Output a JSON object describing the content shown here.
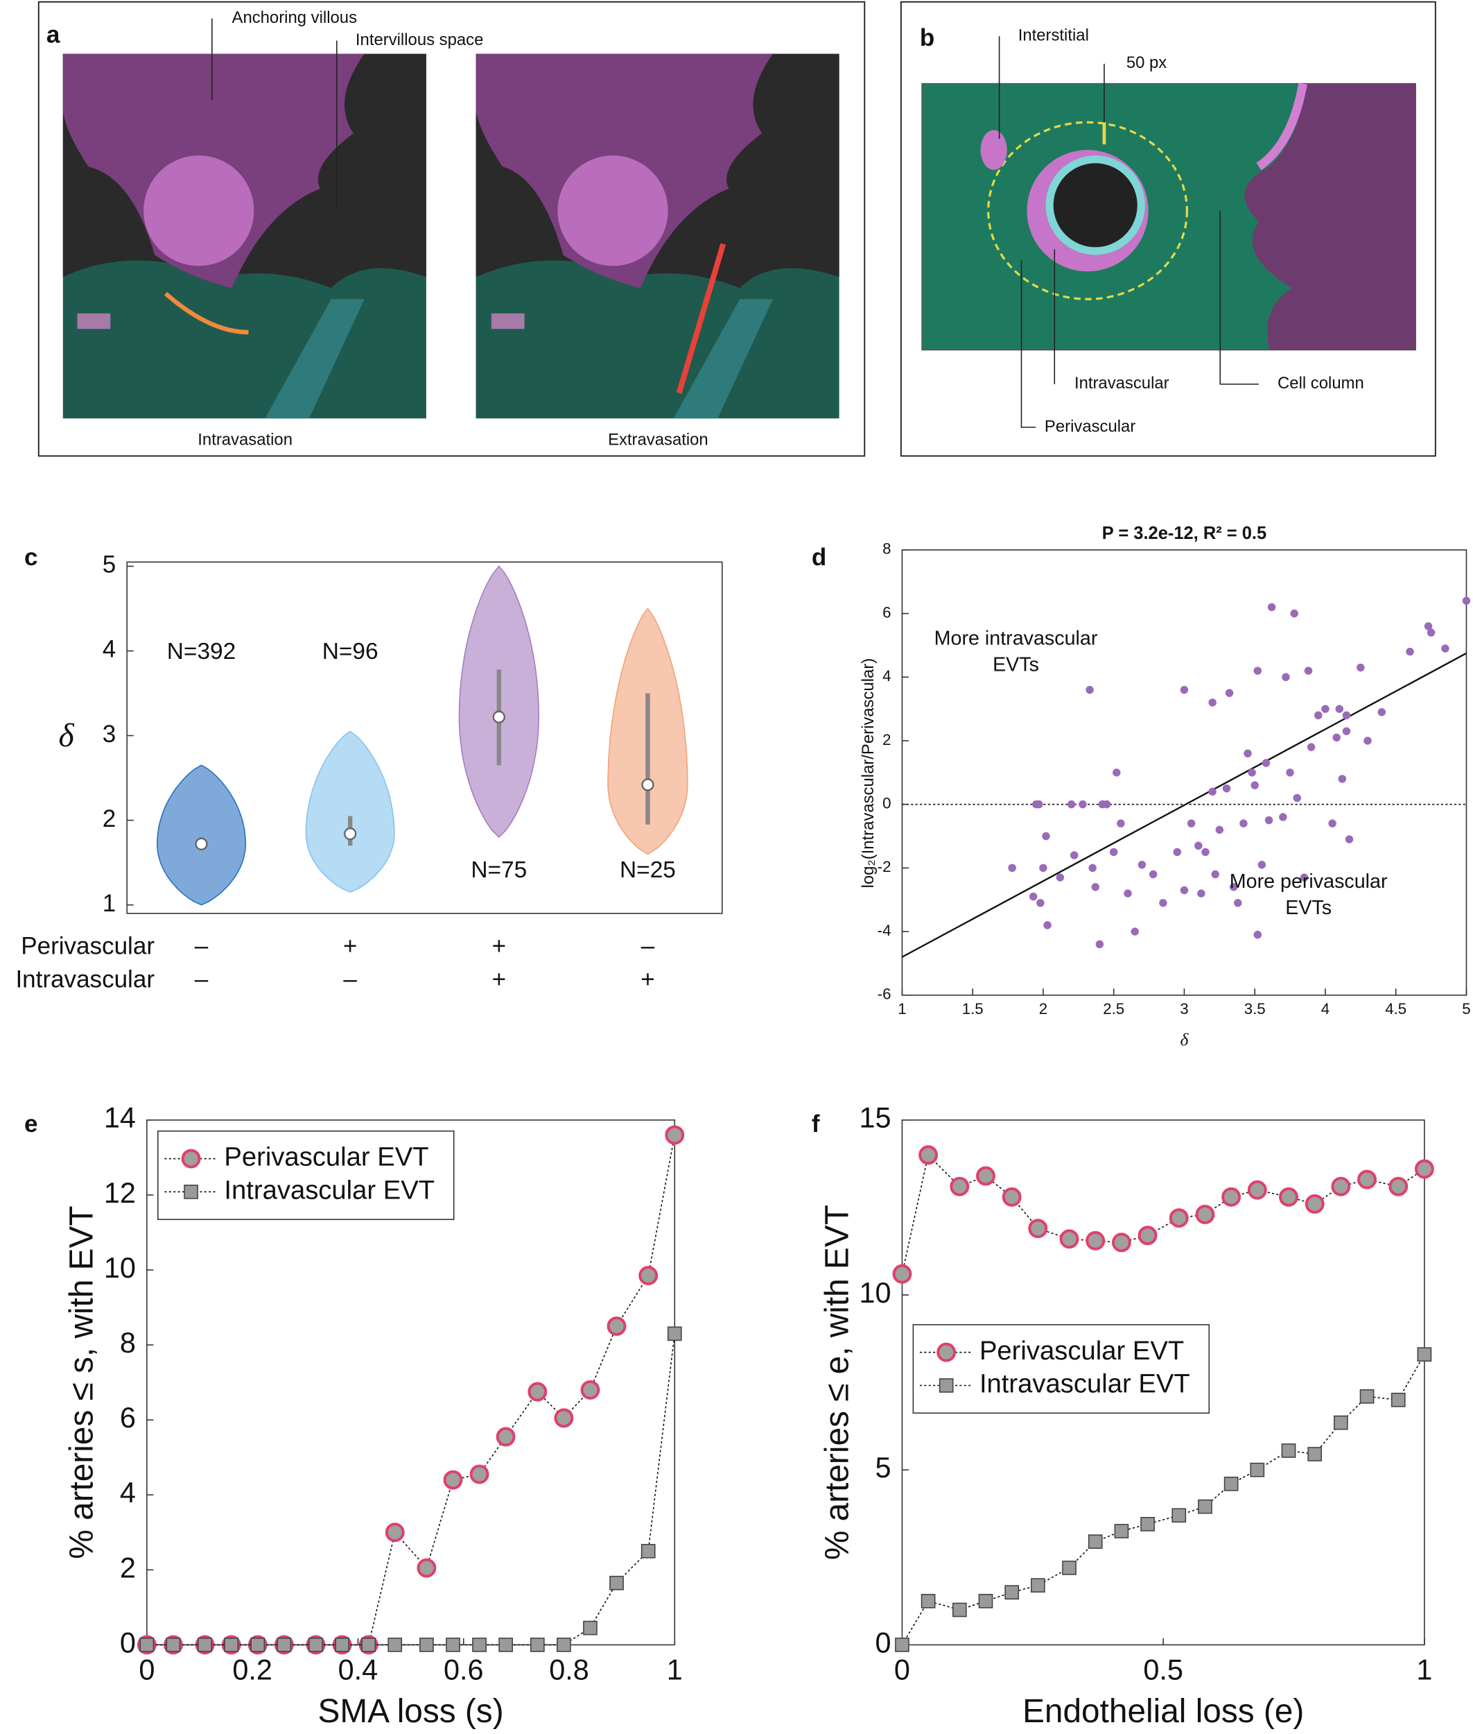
{
  "panel_labels": [
    "a",
    "b",
    "c",
    "d",
    "e",
    "f"
  ],
  "illustration_a": {
    "labels": [
      "Anchoring villous",
      "Intervillous space"
    ],
    "captions": [
      "Intravasation",
      "Extravasation"
    ]
  },
  "illustration_b": {
    "labels": [
      "Interstitial",
      "50 px",
      "Intravascular",
      "Cell column",
      "Perivascular"
    ]
  },
  "chart_data": [
    {
      "type": "violin",
      "ylabel": "δ",
      "ylim": [
        0.9,
        5.05
      ],
      "yticks": [
        1,
        2,
        3,
        4,
        5
      ],
      "row_labels": [
        "Perivascular",
        "Intravascular"
      ],
      "groups": [
        {
          "perivascular": "–",
          "intravascular": "–",
          "n_label": "N=392",
          "color": "#2a6fc0",
          "min": 1.0,
          "q1": 1.65,
          "median": 1.72,
          "q3": 1.8,
          "max": 2.65
        },
        {
          "perivascular": "+",
          "intravascular": "–",
          "n_label": "N=96",
          "color": "#86c3ef",
          "min": 1.15,
          "q1": 1.7,
          "median": 1.84,
          "q3": 2.05,
          "max": 3.05
        },
        {
          "perivascular": "+",
          "intravascular": "+",
          "n_label": "N=75",
          "color": "#a57cc0",
          "min": 1.8,
          "q1": 2.65,
          "median": 3.22,
          "q3": 3.78,
          "max": 5.0
        },
        {
          "perivascular": "–",
          "intravascular": "+",
          "n_label": "N=25",
          "color": "#f2a27a",
          "min": 1.6,
          "q1": 1.95,
          "median": 2.42,
          "q3": 3.5,
          "max": 4.5
        }
      ]
    },
    {
      "type": "scatter",
      "title": "P = 3.2e-12, R² = 0.5",
      "xlabel": "δ",
      "ylabel": "log₂(Intravascular/Perivascular)",
      "xlim": [
        1,
        5
      ],
      "ylim": [
        -6,
        8
      ],
      "xticks": [
        1,
        1.5,
        2,
        2.5,
        3,
        3.5,
        4,
        4.5,
        5
      ],
      "yticks": [
        -6,
        -4,
        -2,
        0,
        2,
        4,
        6,
        8
      ],
      "color": "#9a6ab8",
      "x": [
        1.78,
        1.93,
        1.95,
        1.97,
        1.98,
        2.0,
        2.02,
        2.03,
        2.12,
        2.2,
        2.22,
        2.28,
        2.33,
        2.35,
        2.37,
        2.4,
        2.42,
        2.45,
        2.5,
        2.52,
        2.55,
        2.6,
        2.65,
        2.7,
        2.78,
        2.85,
        2.95,
        3.0,
        3.0,
        3.05,
        3.1,
        3.12,
        3.15,
        3.2,
        3.2,
        3.22,
        3.25,
        3.3,
        3.32,
        3.35,
        3.38,
        3.42,
        3.45,
        3.48,
        3.5,
        3.52,
        3.52,
        3.55,
        3.58,
        3.6,
        3.62,
        3.7,
        3.72,
        3.75,
        3.78,
        3.8,
        3.85,
        3.88,
        3.9,
        3.95,
        4.0,
        4.05,
        4.08,
        4.1,
        4.12,
        4.15,
        4.15,
        4.17,
        4.25,
        4.3,
        4.4,
        4.6,
        4.73,
        4.75,
        4.85,
        5.0
      ],
      "values": [
        -2,
        -2.9,
        0,
        0,
        -3.1,
        -2,
        -1,
        -3.8,
        -2.3,
        0,
        -1.6,
        0,
        3.6,
        -2,
        -2.6,
        -4.4,
        0,
        0,
        -1.5,
        1,
        -0.6,
        -2.8,
        -4,
        -1.9,
        -2.2,
        -3.1,
        -1.5,
        3.6,
        -2.7,
        -0.6,
        -1.3,
        -2.8,
        -1.5,
        3.2,
        0.4,
        -2.2,
        -0.8,
        0.5,
        3.5,
        -2.6,
        -3.1,
        -0.6,
        1.6,
        1,
        0.6,
        4.2,
        -4.1,
        -1.9,
        1.3,
        -0.5,
        6.2,
        -0.4,
        4,
        1,
        6,
        0.2,
        -2.3,
        4.2,
        1.8,
        2.8,
        3,
        -0.6,
        2.1,
        3,
        0.8,
        2.8,
        2.3,
        -1.1,
        4.3,
        2,
        2.9,
        4.8,
        5.6,
        5.4,
        4.9,
        6.4
      ],
      "fit_line": {
        "x": [
          1,
          5
        ],
        "y": [
          -4.8,
          4.75
        ]
      },
      "reference_y": 0,
      "annotations": [
        [
          "More intravascular",
          "EVTs"
        ],
        [
          "More perivascular",
          "EVTs"
        ]
      ]
    },
    {
      "type": "line",
      "xlabel": "SMA loss (s)",
      "ylabel": "% arteries ≤ s, with EVT",
      "xlim": [
        0,
        1
      ],
      "ylim": [
        0,
        14
      ],
      "xticks": [
        0,
        0.2,
        0.4,
        0.6,
        0.8,
        1
      ],
      "yticks": [
        0,
        2,
        4,
        6,
        8,
        10,
        12,
        14
      ],
      "legend": "upper left",
      "x": [
        0,
        0.05,
        0.11,
        0.16,
        0.21,
        0.26,
        0.32,
        0.37,
        0.42,
        0.47,
        0.53,
        0.58,
        0.63,
        0.68,
        0.74,
        0.79,
        0.84,
        0.89,
        0.95,
        1
      ],
      "series": [
        {
          "name": "Perivascular EVT",
          "marker": "circle",
          "color": "#e0406a",
          "values": [
            0,
            0,
            0,
            0,
            0,
            0,
            0,
            0,
            0,
            3.0,
            2.05,
            4.4,
            4.55,
            5.55,
            6.75,
            6.05,
            6.8,
            8.5,
            9.85,
            13.6
          ]
        },
        {
          "name": "Intravascular EVT",
          "marker": "square",
          "color": "#444444",
          "values": [
            0,
            0,
            0,
            0,
            0,
            0,
            0,
            0,
            0,
            0,
            0,
            0,
            0,
            0,
            0,
            0,
            0.45,
            1.65,
            2.5,
            8.3
          ]
        }
      ]
    },
    {
      "type": "line",
      "xlabel": "Endothelial loss (e)",
      "ylabel": "% arteries ≤ e, with EVT",
      "xlim": [
        0,
        1
      ],
      "ylim": [
        0,
        15
      ],
      "xticks": [
        0,
        0.5,
        1
      ],
      "yticks": [
        0,
        5,
        10,
        15
      ],
      "legend": "center left",
      "x": [
        0,
        0.05,
        0.11,
        0.16,
        0.21,
        0.26,
        0.32,
        0.37,
        0.42,
        0.47,
        0.53,
        0.58,
        0.63,
        0.68,
        0.74,
        0.79,
        0.84,
        0.89,
        0.95,
        1
      ],
      "series": [
        {
          "name": "Perivascular EVT",
          "marker": "circle",
          "color": "#e0406a",
          "values": [
            10.6,
            14.0,
            13.1,
            13.4,
            12.8,
            11.9,
            11.6,
            11.55,
            11.5,
            11.7,
            12.2,
            12.3,
            12.8,
            13.0,
            12.8,
            12.6,
            13.1,
            13.3,
            13.1,
            13.6
          ]
        },
        {
          "name": "Intravascular EVT",
          "marker": "square",
          "color": "#444444",
          "values": [
            0,
            1.25,
            1.0,
            1.25,
            1.5,
            1.7,
            2.2,
            2.95,
            3.25,
            3.45,
            3.7,
            3.95,
            4.6,
            5.0,
            5.55,
            5.45,
            6.35,
            7.1,
            7.0,
            8.3
          ]
        }
      ]
    }
  ]
}
